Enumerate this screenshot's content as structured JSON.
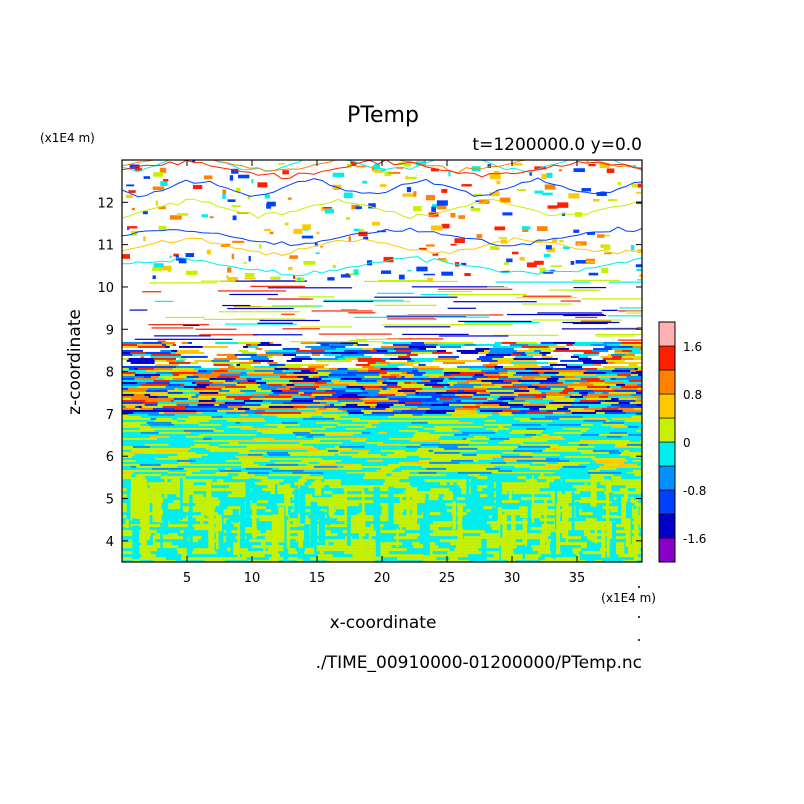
{
  "chart_data": {
    "type": "heatmap",
    "title": "PTemp",
    "subtitle": "t=1200000.0 y=0.0",
    "xlabel": "x-coordinate",
    "ylabel": "z-coordinate",
    "x_unit": "(x1E4 m)",
    "y_unit": "(x1E4 m)",
    "source_file": "./TIME_00910000-01200000/PTemp.nc",
    "xlim": [
      0,
      40
    ],
    "ylim": [
      3.5,
      13
    ],
    "x_ticks": [
      5,
      10,
      15,
      20,
      25,
      30,
      35
    ],
    "y_ticks": [
      4,
      5,
      6,
      7,
      8,
      9,
      10,
      11,
      12
    ],
    "colorbar": {
      "levels": [
        -2.0,
        -1.6,
        -1.2,
        -0.8,
        -0.4,
        0,
        0.4,
        0.8,
        1.2,
        1.6,
        2.0
      ],
      "colors": [
        "#8a00c8",
        "#0000c8",
        "#0040ff",
        "#0090ff",
        "#00eeee",
        "#c8f000",
        "#ffc800",
        "#ff8200",
        "#ff2000",
        "#ffb0b0"
      ],
      "tick_labels": [
        "1.6",
        "0.8",
        "0",
        "-0.8",
        "-1.6"
      ],
      "tick_values": [
        1.6,
        0.8,
        0,
        -0.8,
        -1.6
      ]
    },
    "field_regions": [
      {
        "z_range": [
          3.5,
          5.6
        ],
        "pattern": "cyan-yellow",
        "colors": [
          "#00eeee",
          "#c8f000"
        ]
      },
      {
        "z_range": [
          5.6,
          7.0
        ],
        "pattern": "mixed-low",
        "colors": [
          "#00eeee",
          "#c8f000",
          "#0090ff",
          "#ffc800"
        ]
      },
      {
        "z_range": [
          7.0,
          8.7
        ],
        "pattern": "mixed-full",
        "colors": [
          "#0000c8",
          "#0040ff",
          "#0090ff",
          "#00eeee",
          "#c8f000",
          "#ffc800",
          "#ff8200",
          "#ff2000"
        ]
      },
      {
        "z_range": [
          8.7,
          10.2
        ],
        "pattern": "sparse-streaks",
        "colors": [
          "#0000c8",
          "#c8f000",
          "#ff2000",
          "#00eeee"
        ]
      },
      {
        "z_range": [
          10.2,
          13.0
        ],
        "pattern": "patchy-upper",
        "colors": [
          "#0040ff",
          "#00eeee",
          "#c8f000",
          "#ffc800",
          "#ff8200",
          "#ff2000"
        ]
      }
    ]
  }
}
